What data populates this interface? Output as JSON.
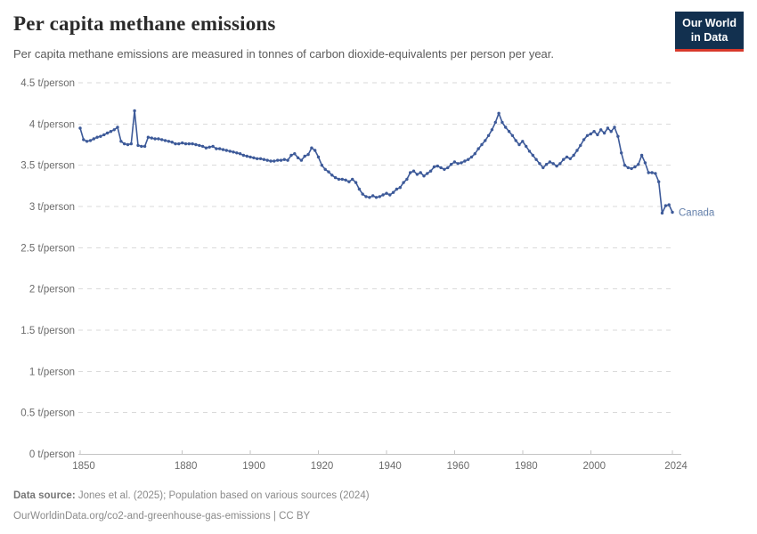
{
  "header": {
    "title": "Per capita methane emissions",
    "subtitle": "Per capita methane emissions are measured in tonnes of carbon dioxide-equivalents per person per year."
  },
  "logo": {
    "line1": "Our World",
    "line2": "in Data",
    "bg_color": "#12304f",
    "accent_color": "#d8392b"
  },
  "chart_data": {
    "type": "line",
    "title": "Per capita methane emissions",
    "ylabel_unit": "t/person",
    "x_start": 1850,
    "x_end": 2024,
    "xlim": [
      1850,
      2024
    ],
    "ylim": [
      0,
      4.5
    ],
    "grid": "horizontal-dashed",
    "legend_position": "end-of-line-label",
    "xticks": [
      1850,
      1880,
      1900,
      1920,
      1940,
      1960,
      1980,
      2000,
      2024
    ],
    "yticks": [
      {
        "value": 0,
        "label": "0 t/person"
      },
      {
        "value": 0.5,
        "label": "0.5 t/person"
      },
      {
        "value": 1,
        "label": "1 t/person"
      },
      {
        "value": 1.5,
        "label": "1.5 t/person"
      },
      {
        "value": 2,
        "label": "2 t/person"
      },
      {
        "value": 2.5,
        "label": "2.5 t/person"
      },
      {
        "value": 3,
        "label": "3 t/person"
      },
      {
        "value": 3.5,
        "label": "3.5 t/person"
      },
      {
        "value": 4,
        "label": "4 t/person"
      },
      {
        "value": 4.5,
        "label": "4.5 t/person"
      }
    ],
    "series": [
      {
        "name": "Canada",
        "color": "#3d5a99",
        "label_color": "#6480ab",
        "x_annual_from": 1850,
        "values": [
          3.95,
          3.81,
          3.79,
          3.8,
          3.82,
          3.84,
          3.85,
          3.87,
          3.89,
          3.91,
          3.93,
          3.96,
          3.79,
          3.76,
          3.75,
          3.76,
          4.16,
          3.74,
          3.73,
          3.73,
          3.84,
          3.83,
          3.82,
          3.82,
          3.81,
          3.8,
          3.79,
          3.78,
          3.76,
          3.76,
          3.77,
          3.76,
          3.76,
          3.76,
          3.75,
          3.74,
          3.73,
          3.71,
          3.72,
          3.73,
          3.7,
          3.7,
          3.69,
          3.68,
          3.67,
          3.66,
          3.65,
          3.64,
          3.62,
          3.61,
          3.6,
          3.59,
          3.58,
          3.58,
          3.57,
          3.56,
          3.55,
          3.55,
          3.56,
          3.56,
          3.57,
          3.56,
          3.62,
          3.64,
          3.59,
          3.56,
          3.61,
          3.63,
          3.71,
          3.68,
          3.6,
          3.5,
          3.45,
          3.42,
          3.38,
          3.35,
          3.33,
          3.33,
          3.32,
          3.3,
          3.33,
          3.29,
          3.21,
          3.15,
          3.12,
          3.11,
          3.13,
          3.11,
          3.12,
          3.14,
          3.16,
          3.14,
          3.17,
          3.21,
          3.23,
          3.29,
          3.33,
          3.41,
          3.43,
          3.39,
          3.41,
          3.37,
          3.4,
          3.43,
          3.48,
          3.49,
          3.47,
          3.45,
          3.47,
          3.51,
          3.54,
          3.52,
          3.53,
          3.55,
          3.57,
          3.6,
          3.64,
          3.7,
          3.75,
          3.8,
          3.86,
          3.93,
          4.02,
          4.13,
          4.02,
          3.96,
          3.91,
          3.86,
          3.8,
          3.75,
          3.79,
          3.73,
          3.67,
          3.62,
          3.57,
          3.52,
          3.47,
          3.51,
          3.54,
          3.52,
          3.49,
          3.52,
          3.57,
          3.6,
          3.58,
          3.62,
          3.68,
          3.74,
          3.81,
          3.86,
          3.88,
          3.91,
          3.87,
          3.93,
          3.89,
          3.95,
          3.91,
          3.96,
          3.85,
          3.65,
          3.5,
          3.47,
          3.46,
          3.48,
          3.51,
          3.62,
          3.53,
          3.41,
          3.41,
          3.4,
          3.3,
          2.92,
          3.01,
          3.02,
          2.93
        ]
      }
    ]
  },
  "footer": {
    "datasource_label": "Data source:",
    "datasource_value": "Jones et al. (2025); Population based on various sources (2024)",
    "license_line": "OurWorldinData.org/co2-and-greenhouse-gas-emissions | CC BY"
  }
}
